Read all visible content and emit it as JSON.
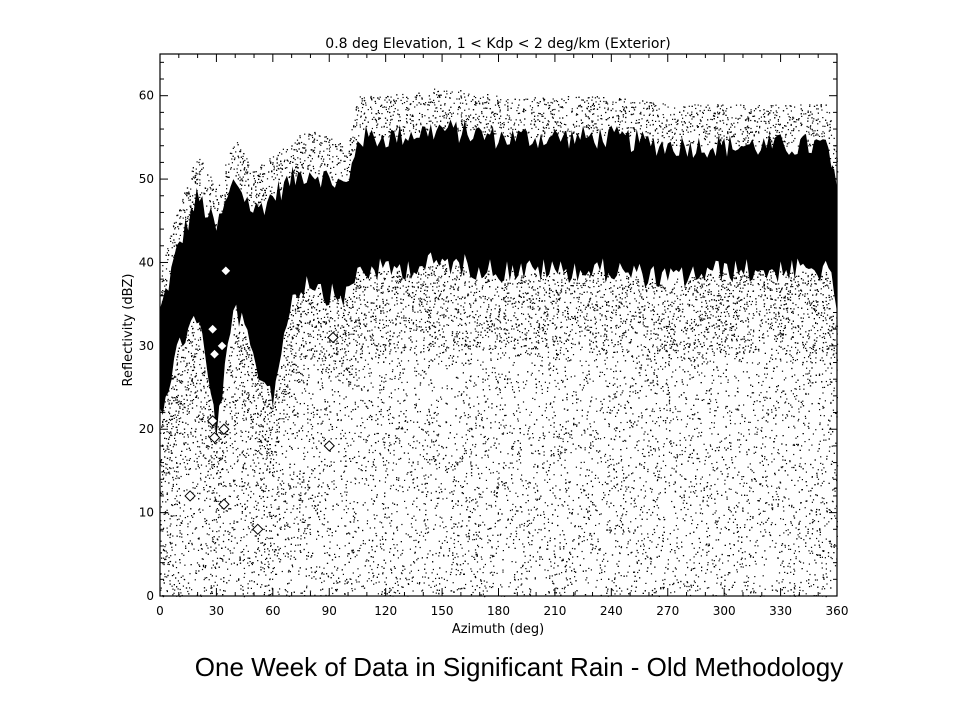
{
  "caption": "One Week of Data in Significant Rain - Old Methodology",
  "chart_data": {
    "type": "scatter",
    "title": "0.8 deg Elevation, 1 < Kdp < 2 deg/km (Exterior)",
    "xlabel": "Azimuth (deg)",
    "ylabel": "Reflectivity (dBZ)",
    "xlim": [
      0,
      360
    ],
    "ylim": [
      0,
      65
    ],
    "x_ticks": [
      0,
      30,
      60,
      90,
      120,
      150,
      180,
      210,
      240,
      270,
      300,
      330,
      360
    ],
    "y_ticks": [
      0,
      10,
      20,
      30,
      40,
      50,
      60
    ],
    "grid": false,
    "legend": "none",
    "marker_color": "#000000",
    "core_band_dbz": {
      "azimuth": [
        0,
        10,
        20,
        30,
        40,
        50,
        60,
        70,
        80,
        90,
        100,
        105,
        120,
        150,
        180,
        210,
        240,
        270,
        300,
        330,
        355,
        360
      ],
      "lower": [
        22,
        30,
        34,
        20,
        35,
        28,
        24,
        36,
        38,
        36,
        36,
        39,
        39,
        40,
        39,
        39,
        39,
        38,
        39,
        39,
        39,
        35
      ],
      "upper": [
        34,
        42,
        48,
        44,
        50,
        46,
        48,
        50,
        51,
        50,
        49,
        55,
        55,
        56,
        55,
        55,
        55,
        54,
        54,
        54,
        54,
        48
      ]
    },
    "diamond_points": [
      {
        "x": 28,
        "y": 32
      },
      {
        "x": 29,
        "y": 29
      },
      {
        "x": 28,
        "y": 21
      },
      {
        "x": 29,
        "y": 19
      },
      {
        "x": 33,
        "y": 30
      },
      {
        "x": 34,
        "y": 20
      },
      {
        "x": 34,
        "y": 11
      },
      {
        "x": 35,
        "y": 39
      },
      {
        "x": 16,
        "y": 12
      },
      {
        "x": 92,
        "y": 31
      },
      {
        "x": 90,
        "y": 18
      },
      {
        "x": 52,
        "y": 8
      }
    ]
  }
}
